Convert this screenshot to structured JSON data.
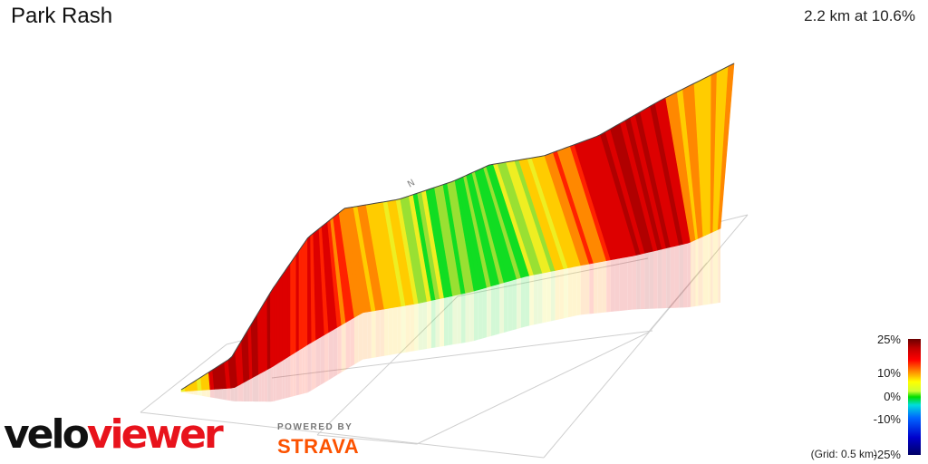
{
  "header": {
    "title": "Park Rash",
    "summary": "2.2 km at 10.6%"
  },
  "chart_data": {
    "type": "area",
    "distance_km": 2.2,
    "avg_gradient_pct": 10.6,
    "x_km": [
      0.0,
      0.1,
      0.2,
      0.3,
      0.4,
      0.5,
      0.6,
      0.7,
      0.8,
      0.9,
      1.0,
      1.1,
      1.2,
      1.3,
      1.4,
      1.5,
      1.6,
      1.7,
      1.8,
      1.9,
      2.0,
      2.1,
      2.2
    ],
    "gradient_pct": [
      8,
      21,
      20,
      19,
      18,
      15,
      17,
      13,
      10,
      7,
      3,
      2,
      1,
      1,
      4,
      8,
      12,
      18,
      21,
      19,
      10,
      9,
      14
    ],
    "legend": {
      "labels": [
        "25%",
        "10%",
        "0%",
        "-10%",
        "-25%"
      ]
    },
    "grid_note": "(Grid: 0.5 km)"
  },
  "brand": {
    "logo_part1": "velo",
    "logo_part2": "viewer",
    "powered_by": "POWERED BY",
    "strava": "STRAVA"
  },
  "colors": {
    "steep": "#c00000",
    "hard": "#ff0000",
    "medium": "#ff9900",
    "moderate": "#ffff00",
    "flat": "#00dd00",
    "strava": "#fc5200",
    "viewer_red": "#e8131c"
  }
}
